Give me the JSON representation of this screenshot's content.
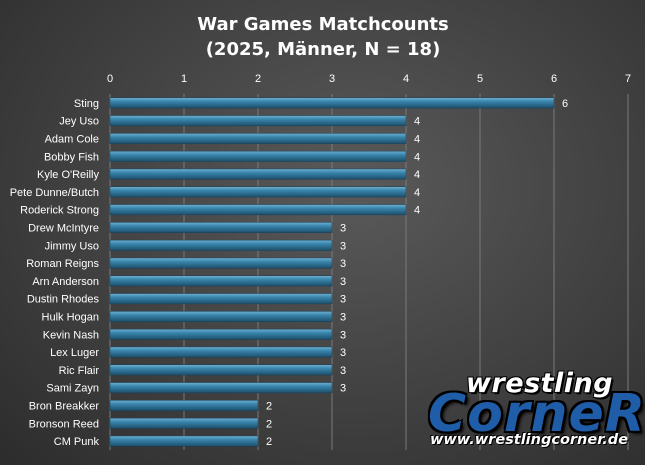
{
  "chart_data": {
    "type": "bar",
    "orientation": "horizontal",
    "title": [
      "War Games Matchcounts",
      "(2025, Männer,  N = 18)"
    ],
    "categories": [
      "Sting",
      "Jey Uso",
      "Adam Cole",
      "Bobby Fish",
      "Kyle O'Reilly",
      "Pete Dunne/Butch",
      "Roderick Strong",
      "Drew McIntyre",
      "Jimmy Uso",
      "Roman Reigns",
      "Arn Anderson",
      "Dustin Rhodes",
      "Hulk Hogan",
      "Kevin Nash",
      "Lex Luger",
      "Ric Flair",
      "Sami Zayn",
      "Bron Breakker",
      "Bronson Reed",
      "CM Punk"
    ],
    "values": [
      6,
      4,
      4,
      4,
      4,
      4,
      4,
      3,
      3,
      3,
      3,
      3,
      3,
      3,
      3,
      3,
      3,
      2,
      2,
      2
    ],
    "xlim": [
      0,
      7
    ],
    "xticks": [
      0,
      1,
      2,
      3,
      4,
      5,
      6,
      7
    ],
    "axis_position": "top",
    "grid": true,
    "bar_color": "#2e6c8c",
    "data_labels": true
  },
  "logo": {
    "top_text": "wrestling",
    "main_text": "CorneR",
    "url": "www.wrestlingcorner.de",
    "color": "#1f5da8"
  }
}
